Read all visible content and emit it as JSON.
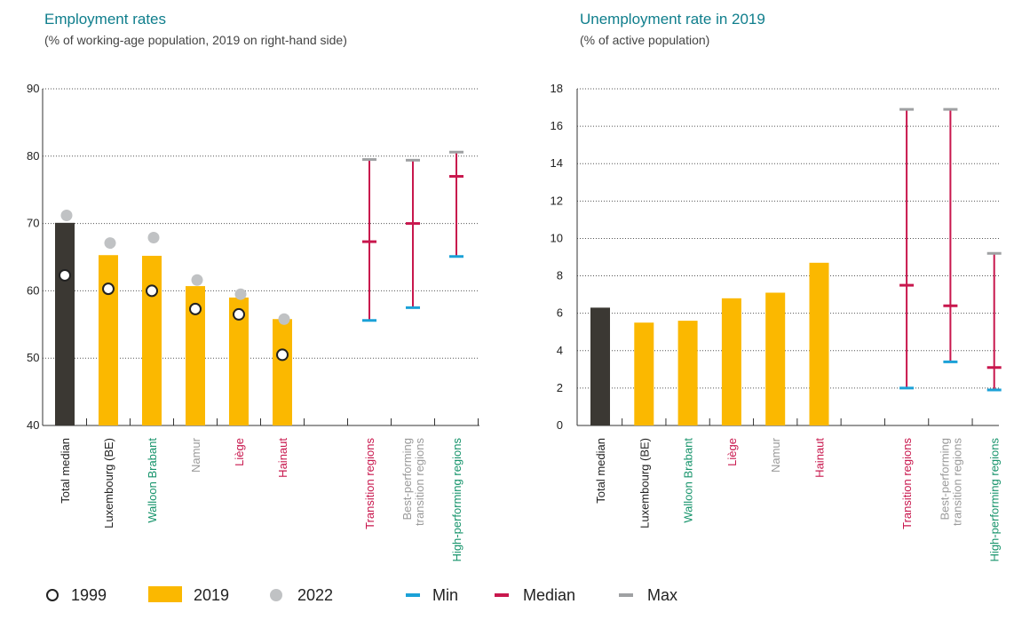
{
  "colors": {
    "title": "#0f7e8c",
    "dark_bar": "#3b3833",
    "bar_2019": "#fbb800",
    "dot_2022": "#c0c2c4",
    "min": "#1ba1d7",
    "median": "#c8174d",
    "max": "#9fa1a3",
    "label_black": "#222222",
    "label_green": "#15936a",
    "label_red": "#c8174d",
    "label_grey": "#9a9a9a"
  },
  "legend": {
    "y1999": "1999",
    "y2019": "2019",
    "y2022": "2022",
    "min": "Min",
    "median": "Median",
    "max": "Max"
  },
  "chart_data": [
    {
      "type": "bar",
      "title": "Employment rates",
      "subtitle": "(% of working-age population, 2019 on right-hand side)",
      "ylim": [
        40,
        90
      ],
      "yticks": [
        40,
        50,
        60,
        70,
        80,
        90
      ],
      "grid": true,
      "categories": [
        {
          "label": "Total median",
          "color": "label_black"
        },
        {
          "label": "Luxembourg (BE)",
          "color": "label_black"
        },
        {
          "label": "Walloon Brabant",
          "color": "label_green"
        },
        {
          "label": "Namur",
          "color": "label_grey"
        },
        {
          "label": "Liège",
          "color": "label_red"
        },
        {
          "label": "Hainaut",
          "color": "label_red"
        },
        {
          "label": "",
          "color": "label_black"
        },
        {
          "label": "Transition regions",
          "color": "label_red"
        },
        {
          "label": [
            "Best-performing",
            "transition regions"
          ],
          "color": "label_grey"
        },
        {
          "label": "High-performing regions",
          "color": "label_green"
        }
      ],
      "bars_2019": [
        70.1,
        65.3,
        65.2,
        60.7,
        59.0,
        55.8,
        null,
        null,
        null,
        null
      ],
      "points_1999": [
        62.3,
        60.3,
        60.0,
        57.3,
        56.5,
        50.5,
        null,
        null,
        null,
        null
      ],
      "points_2022": [
        71.2,
        67.1,
        67.9,
        61.6,
        59.5,
        55.8,
        null,
        null,
        null,
        null
      ],
      "ranges": [
        null,
        null,
        null,
        null,
        null,
        null,
        null,
        {
          "min": 55.6,
          "median": 67.3,
          "max": 79.5
        },
        {
          "min": 57.5,
          "median": 70.0,
          "max": 79.4
        },
        {
          "min": 65.1,
          "median": 77.0,
          "max": 80.6
        }
      ]
    },
    {
      "type": "bar",
      "title": "Unemployment rate in 2019",
      "subtitle": "(% of active population)",
      "ylim": [
        0,
        18
      ],
      "yticks": [
        0,
        2,
        4,
        6,
        8,
        10,
        12,
        14,
        16,
        18
      ],
      "grid": true,
      "categories": [
        {
          "label": "Total median",
          "color": "label_black"
        },
        {
          "label": "Luxembourg (BE)",
          "color": "label_black"
        },
        {
          "label": "Walloon Brabant",
          "color": "label_green"
        },
        {
          "label": "Liège",
          "color": "label_red"
        },
        {
          "label": "Namur",
          "color": "label_grey"
        },
        {
          "label": "Hainaut",
          "color": "label_red"
        },
        {
          "label": "",
          "color": "label_black"
        },
        {
          "label": "Transition regions",
          "color": "label_red"
        },
        {
          "label": [
            "Best-performing",
            "transition regions"
          ],
          "color": "label_grey"
        },
        {
          "label": "High-performing regions",
          "color": "label_green"
        }
      ],
      "bars_2019": [
        6.3,
        5.5,
        5.6,
        6.8,
        7.1,
        8.7,
        null,
        null,
        null,
        null
      ],
      "ranges": [
        null,
        null,
        null,
        null,
        null,
        null,
        null,
        {
          "min": 2.0,
          "median": 7.5,
          "max": 16.9
        },
        {
          "min": 3.4,
          "median": 6.4,
          "max": 16.9
        },
        {
          "min": 1.9,
          "median": 3.1,
          "max": 9.2
        }
      ]
    }
  ]
}
